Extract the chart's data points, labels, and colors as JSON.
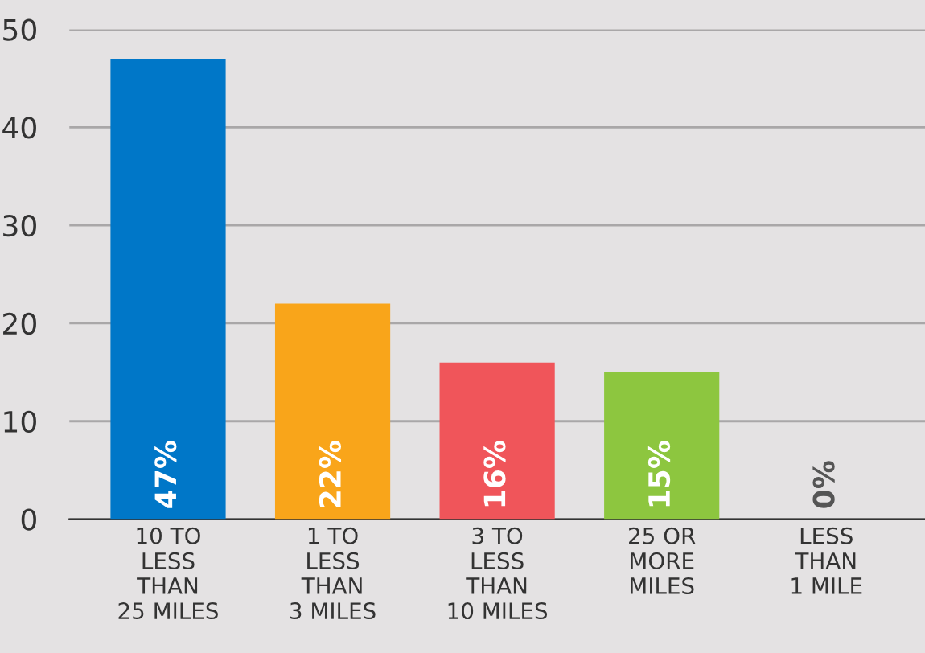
{
  "chart_data": {
    "type": "bar",
    "categories": [
      "10 TO\nLESS\nTHAN\n25 MILES",
      "1 TO\nLESS\nTHAN\n3 MILES",
      "3 TO\nLESS\nTHAN\n10 MILES",
      "25 OR\nMORE\nMILES",
      "LESS\nTHAN\n1 MILE"
    ],
    "values": [
      47,
      22,
      16,
      15,
      0
    ],
    "colors": [
      "#0077c8",
      "#f9a51a",
      "#f0555a",
      "#8dc63f",
      "#8a8a8a"
    ],
    "value_labels": [
      "47%",
      "22%",
      "16%",
      "15%",
      "0%"
    ],
    "ylim": [
      0,
      50
    ],
    "yticks": [
      0,
      10,
      20,
      30,
      40,
      50
    ],
    "grid": "y"
  }
}
